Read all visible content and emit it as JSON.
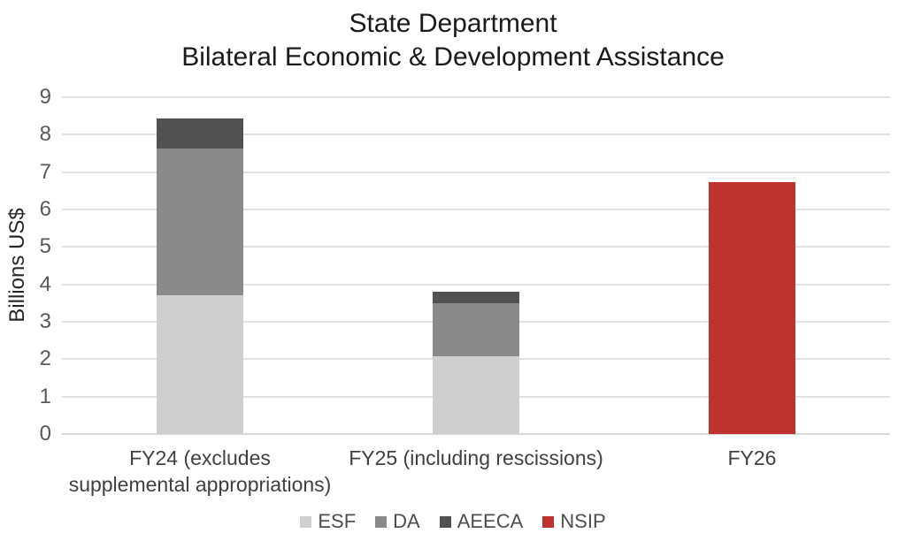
{
  "chart_data": {
    "type": "bar",
    "stacked": true,
    "title_lines": [
      "State Department",
      "Bilateral Economic & Development Assistance"
    ],
    "ylabel": "Billions US$",
    "ylim": [
      0,
      9
    ],
    "ytick_step": 1,
    "ytick_labels": [
      "0",
      "1",
      "2",
      "3",
      "4",
      "5",
      "6",
      "7",
      "8",
      "9"
    ],
    "grid": true,
    "legend_position": "bottom",
    "categories": [
      "FY24 (excludes supplemental appropriations)",
      "FY25 (including rescissions)",
      "FY26"
    ],
    "category_label_lines": [
      [
        "FY24 (excludes",
        "supplemental appropriations)"
      ],
      [
        "FY25 (including rescissions)"
      ],
      [
        "FY26"
      ]
    ],
    "series": [
      {
        "name": "ESF",
        "color": "#d0cfcf",
        "values": [
          3.72,
          2.07,
          0
        ]
      },
      {
        "name": "DA",
        "color": "#8a8a8a",
        "values": [
          3.92,
          1.43,
          0
        ]
      },
      {
        "name": "AEECA",
        "color": "#515151",
        "values": [
          0.8,
          0.31,
          0
        ]
      },
      {
        "name": "NSIP",
        "color": "#be3230",
        "values": [
          0,
          0,
          6.73
        ]
      }
    ],
    "stack_totals": [
      8.44,
      3.81,
      6.73
    ],
    "style": {
      "gridline_color": "#e2e2e2",
      "baseline_color": "#d9d9d9",
      "tick_text_color": "#595959",
      "category_text_color": "#404040",
      "title_text_color": "#1a1a1a",
      "background": "#ffffff"
    }
  }
}
